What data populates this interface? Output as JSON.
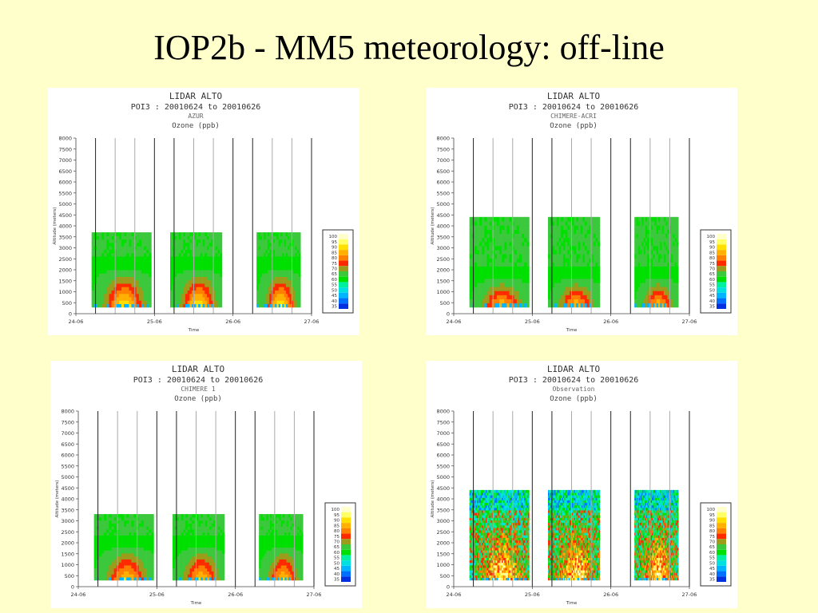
{
  "title": "IOP2b - MM5 meteorology: off-line",
  "common": {
    "y_ticks": [
      "8000",
      "7500",
      "7000",
      "6500",
      "6000",
      "5500",
      "5000",
      "4500",
      "4000",
      "3500",
      "3000",
      "2500",
      "2000",
      "1500",
      "1000",
      "500",
      "0"
    ],
    "x_ticks": [
      "24-06",
      "25-06",
      "26-06",
      "27-06"
    ],
    "ylabel": "Altitude (meters)",
    "xlabel": "Time",
    "colorbar": {
      "labels": [
        "100",
        "95",
        "90",
        "85",
        "80",
        "75",
        "70",
        "65",
        "60",
        "55",
        "50",
        "45",
        "40",
        "35"
      ],
      "colors": [
        "#FFFFCC",
        "#FFFF66",
        "#FFE000",
        "#FFB000",
        "#FF8000",
        "#FF2A00",
        "#9C9C1A",
        "#3CC83C",
        "#00E000",
        "#00F0A0",
        "#00E0E0",
        "#00B4FF",
        "#0070FF",
        "#0030E0"
      ]
    }
  },
  "chart_data": [
    {
      "type": "heatmap",
      "title": "LIDAR  ALTO",
      "subtitle": "POI3 : 20010624 to 20010626",
      "model": "AZUR",
      "variable": "Ozone (ppb)",
      "xlabel": "Time",
      "ylabel": "Altitude (meters)",
      "ylim": [
        0,
        8000
      ],
      "x_ticks": [
        "24-06",
        "25-06",
        "26-06",
        "27-06"
      ],
      "legend": "right",
      "periods": [
        {
          "start": 0.2,
          "end": 0.96,
          "top": 3700
        },
        {
          "start": 1.2,
          "end": 1.86,
          "top": 3700
        },
        {
          "start": 2.3,
          "end": 2.86,
          "top": 3700
        }
      ],
      "max_altitude": 2000,
      "peak_level": 100
    },
    {
      "type": "heatmap",
      "title": "LIDAR  ALTO",
      "subtitle": "POI3 : 20010624 to 20010626",
      "model": "CHIMERE-ACRI",
      "variable": "Ozone (ppb)",
      "xlabel": "Time",
      "ylabel": "Altitude (meters)",
      "ylim": [
        0,
        8000
      ],
      "x_ticks": [
        "24-06",
        "25-06",
        "26-06",
        "27-06"
      ],
      "legend": "right",
      "periods": [
        {
          "start": 0.2,
          "end": 0.96,
          "top": 4400
        },
        {
          "start": 1.2,
          "end": 1.86,
          "top": 4400
        },
        {
          "start": 2.3,
          "end": 2.86,
          "top": 4400
        }
      ],
      "max_altitude": 1600,
      "peak_level": 95
    },
    {
      "type": "heatmap",
      "title": "LIDAR  ALTO",
      "subtitle": "POI3 : 20010624 to 20010626",
      "model": "CHIMERE 1",
      "variable": "Ozone (ppb)",
      "xlabel": "Time",
      "ylabel": "Altitude (meters)",
      "ylim": [
        0,
        8000
      ],
      "x_ticks": [
        "24-06",
        "25-06",
        "26-06",
        "27-06"
      ],
      "legend": "right",
      "periods": [
        {
          "start": 0.2,
          "end": 0.96,
          "top": 3300
        },
        {
          "start": 1.2,
          "end": 1.86,
          "top": 3300
        },
        {
          "start": 2.3,
          "end": 2.86,
          "top": 3300
        }
      ],
      "max_altitude": 1800,
      "peak_level": 95
    },
    {
      "type": "heatmap",
      "title": "LIDAR  ALTO",
      "subtitle": "POI3 : 20010624 to 20010626",
      "model": "Observation",
      "variable": "Ozone (ppb)",
      "xlabel": "Time",
      "ylabel": "Altitude (meters)",
      "ylim": [
        0,
        8000
      ],
      "x_ticks": [
        "24-06",
        "25-06",
        "26-06",
        "27-06"
      ],
      "legend": "right",
      "periods": [
        {
          "start": 0.2,
          "end": 0.96,
          "top": 4400
        },
        {
          "start": 1.2,
          "end": 1.86,
          "top": 4400
        },
        {
          "start": 2.3,
          "end": 2.86,
          "top": 4400
        }
      ],
      "max_altitude": 3000,
      "peak_level": 100
    }
  ]
}
